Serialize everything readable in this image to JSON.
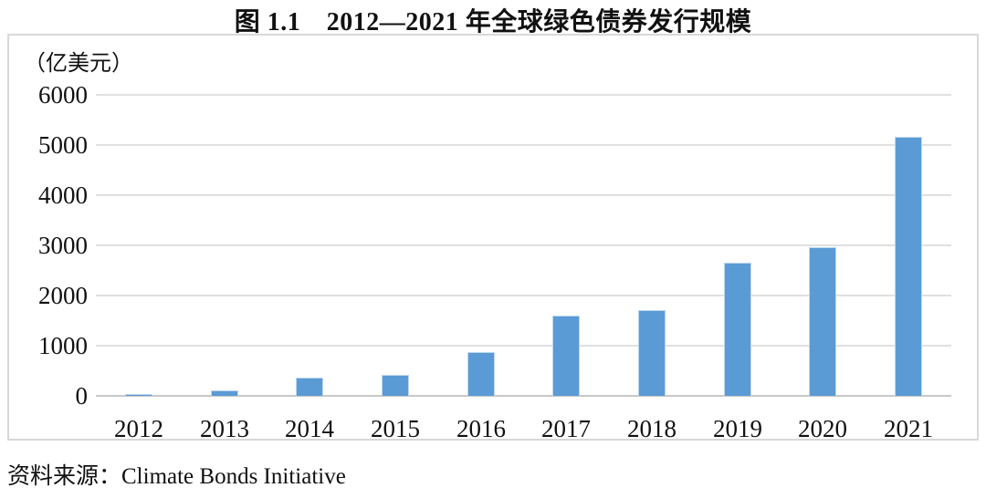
{
  "chart_data": {
    "type": "bar",
    "title": "图 1.1　2012—2021 年全球绿色债券发行规模",
    "unit_label": "（亿美元）",
    "categories": [
      "2012",
      "2013",
      "2014",
      "2015",
      "2016",
      "2017",
      "2018",
      "2019",
      "2020",
      "2021"
    ],
    "values": [
      30,
      110,
      365,
      420,
      870,
      1600,
      1710,
      2650,
      2960,
      5170
    ],
    "yticks": [
      0,
      1000,
      2000,
      3000,
      4000,
      5000,
      6000
    ],
    "ylim": [
      0,
      6000
    ],
    "xlabel": "",
    "ylabel": "亿美元",
    "grid": true,
    "legend_position": "none",
    "source": "资料来源：Climate Bonds Initiative",
    "colors": {
      "bar_fill": "#5B9BD5",
      "bar_edge": "#BDD7EE",
      "gridline": "#E0E0E0",
      "axis_line": "#C8C8C8",
      "box_border": "#D8D8D8",
      "text": "#111111"
    }
  }
}
